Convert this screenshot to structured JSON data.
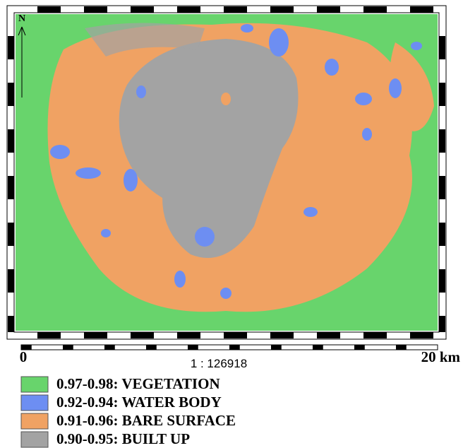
{
  "map": {
    "north_label": "N",
    "scale_bar": {
      "start_label": "0",
      "ratio": "1 : 126918",
      "end_label": "20 km"
    },
    "legend": [
      {
        "label": "0.97-0.98: VEGETATION",
        "color": "#68d46c"
      },
      {
        "label": "0.92-0.94: WATER BODY",
        "color": "#6d8ef2"
      },
      {
        "label": "0.91-0.96: BARE SURFACE",
        "color": "#f0a263"
      },
      {
        "label": "0.90-0.95: BUILT UP",
        "color": "#a3a3a3"
      }
    ]
  }
}
